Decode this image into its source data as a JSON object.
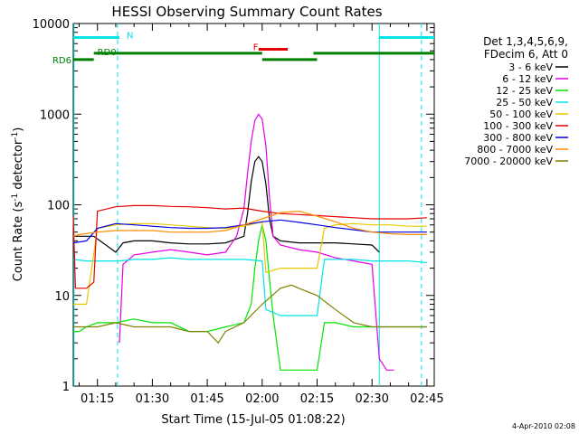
{
  "chart_data": {
    "type": "line",
    "title": "HESSI Observing Summary Count Rates",
    "xlabel": "Start Time (15-Jul-05 01:08:22)",
    "ylabel_main": "Count Rate (s",
    "ylabel_sup1": "-1",
    "ylabel_mid": " detector",
    "ylabel_sup2": "-1",
    "ylabel_end": ")",
    "y_scale": "log",
    "ylim": [
      1,
      10000
    ],
    "xlim_minutes": [
      68.4,
      167
    ],
    "x_ticks": [
      {
        "m": 75,
        "label": "01:15"
      },
      {
        "m": 90,
        "label": "01:30"
      },
      {
        "m": 105,
        "label": "01:45"
      },
      {
        "m": 120,
        "label": "02:00"
      },
      {
        "m": 135,
        "label": "02:15"
      },
      {
        "m": 150,
        "label": "02:30"
      },
      {
        "m": 165,
        "label": "02:45"
      }
    ],
    "y_ticks": [
      {
        "v": 1,
        "label": "1"
      },
      {
        "v": 10,
        "label": "10"
      },
      {
        "v": 100,
        "label": "100"
      },
      {
        "v": 1000,
        "label": "1000"
      },
      {
        "v": 10000,
        "label": "10000"
      }
    ],
    "legend_header": [
      "Det 1,3,4,5,6,9,",
      "FDecim 6, Att 0"
    ],
    "legend_position": "right",
    "footer_date": "4-Apr-2010 02:08",
    "flags": [
      {
        "label": "N",
        "color": "#00e5e5",
        "segments": [
          [
            68.4,
            81
          ],
          [
            152,
            167
          ]
        ],
        "level": 7000
      },
      {
        "label": "F",
        "color": "#e60000",
        "segments": [
          [
            119,
            127
          ]
        ],
        "level": 5200
      },
      {
        "label": "RD0",
        "color": "#008000",
        "segments": [
          [
            74,
            120
          ],
          [
            134,
            167
          ]
        ],
        "level": 4700
      },
      {
        "label": "RD6",
        "color": "#008000",
        "segments": [
          [
            68.4,
            74
          ],
          [
            120,
            135
          ]
        ],
        "level": 4000
      }
    ],
    "night_boundaries_minutes": [
      80.5,
      163.5
    ],
    "day_boundaries_minutes": [
      68.6,
      152
    ],
    "series": [
      {
        "name": "3 - 6 keV",
        "color": "#000000",
        "x": [
          68.4,
          73,
          74,
          80,
          82,
          85,
          90,
          95,
          100,
          105,
          110,
          115,
          116,
          117,
          118,
          119,
          120,
          121,
          122,
          123,
          125,
          130,
          135,
          138,
          140,
          145,
          150,
          152
        ],
        "y": [
          45,
          45,
          45,
          30,
          38,
          40,
          40,
          38,
          37,
          37,
          38,
          45,
          80,
          180,
          300,
          340,
          300,
          170,
          70,
          45,
          40,
          38,
          38,
          38,
          38,
          37,
          36,
          30
        ]
      },
      {
        "name": "6 - 12 keV",
        "color": "#e600e6",
        "x": [
          81,
          82,
          85,
          90,
          95,
          100,
          105,
          110,
          113,
          115,
          116,
          117,
          118,
          119,
          120,
          121,
          122,
          123,
          125,
          130,
          135,
          140,
          145,
          150,
          152,
          154,
          156
        ],
        "y": [
          3,
          22,
          28,
          30,
          32,
          30,
          28,
          30,
          45,
          90,
          220,
          500,
          850,
          1000,
          880,
          450,
          120,
          45,
          36,
          32,
          30,
          26,
          24,
          22,
          2,
          1.5,
          1.5
        ]
      },
      {
        "name": "12 - 25 keV",
        "color": "#00e600",
        "x": [
          68.4,
          70,
          72,
          75,
          80,
          85,
          90,
          95,
          100,
          105,
          110,
          115,
          117,
          118,
          119,
          120,
          121,
          122,
          123,
          125,
          130,
          135,
          137,
          140,
          145,
          150,
          155,
          160,
          165
        ],
        "y": [
          4,
          4,
          4.5,
          5,
          5,
          5.5,
          5,
          5,
          4,
          4,
          4.5,
          5,
          8,
          20,
          40,
          60,
          40,
          15,
          6,
          1.5,
          1.5,
          1.5,
          5,
          5,
          4.5,
          4.5,
          4.5,
          4.5,
          4.5
        ]
      },
      {
        "name": "25 - 50 keV",
        "color": "#00e5e5",
        "x": [
          68.4,
          72,
          75,
          80,
          81,
          85,
          90,
          95,
          100,
          105,
          110,
          115,
          120,
          121,
          125,
          130,
          135,
          137,
          140,
          145,
          150,
          155,
          160,
          165
        ],
        "y": [
          25,
          24,
          24,
          24,
          24,
          25,
          25,
          26,
          25,
          25,
          25,
          25,
          24,
          7,
          6,
          6,
          6,
          25,
          25,
          25,
          24,
          24,
          24,
          23
        ]
      },
      {
        "name": "50 - 100 keV",
        "color": "#e6c800",
        "x": [
          68.4,
          72,
          75,
          80,
          85,
          90,
          95,
          100,
          105,
          110,
          115,
          120,
          121,
          125,
          130,
          135,
          137,
          140,
          145,
          150,
          155,
          160,
          165
        ],
        "y": [
          8,
          8,
          55,
          60,
          62,
          62,
          60,
          58,
          56,
          55,
          58,
          65,
          18,
          20,
          20,
          20,
          55,
          60,
          62,
          60,
          60,
          58,
          58
        ]
      },
      {
        "name": "100 - 300 keV",
        "color": "#e60000",
        "x": [
          68.4,
          69,
          70,
          72,
          74,
          75,
          80,
          85,
          90,
          95,
          100,
          105,
          110,
          115,
          120,
          125,
          130,
          135,
          140,
          145,
          150,
          155,
          160,
          165
        ],
        "y": [
          75,
          12,
          12,
          12,
          14,
          85,
          95,
          98,
          98,
          96,
          95,
          93,
          90,
          92,
          85,
          80,
          78,
          76,
          74,
          72,
          70,
          70,
          70,
          72
        ]
      },
      {
        "name": "300 - 800 keV",
        "color": "#0000e6",
        "x": [
          68.4,
          72,
          75,
          80,
          85,
          90,
          95,
          100,
          105,
          110,
          115,
          120,
          125,
          130,
          135,
          140,
          145,
          150,
          155,
          160,
          165
        ],
        "y": [
          38,
          40,
          55,
          62,
          60,
          58,
          56,
          55,
          55,
          56,
          60,
          65,
          68,
          64,
          60,
          56,
          53,
          50,
          50,
          50,
          50
        ]
      },
      {
        "name": "800 - 7000 keV",
        "color": "#ff8c00",
        "x": [
          68.4,
          70,
          75,
          80,
          85,
          90,
          95,
          100,
          105,
          110,
          115,
          120,
          125,
          130,
          135,
          140,
          145,
          150,
          155,
          160,
          165
        ],
        "y": [
          45,
          47,
          50,
          52,
          52,
          52,
          50,
          50,
          50,
          52,
          60,
          70,
          82,
          85,
          75,
          65,
          55,
          50,
          48,
          47,
          47
        ]
      },
      {
        "name": "7000 - 20000 keV",
        "color": "#808000",
        "x": [
          68.4,
          70,
          75,
          80,
          85,
          90,
          95,
          100,
          105,
          108,
          110,
          115,
          120,
          125,
          128,
          130,
          135,
          140,
          145,
          150,
          155,
          160,
          165
        ],
        "y": [
          4.5,
          4.5,
          4.5,
          5,
          4.5,
          4.5,
          4.5,
          4,
          4,
          3,
          4,
          5,
          8,
          12,
          13,
          12,
          10,
          7,
          5,
          4.5,
          4.5,
          4.5,
          4.5
        ]
      }
    ]
  }
}
